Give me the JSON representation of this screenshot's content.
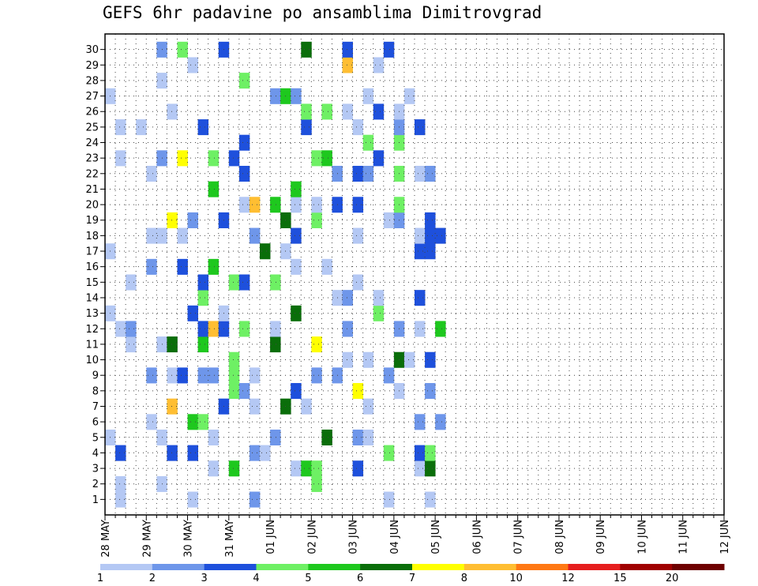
{
  "chart_data": {
    "type": "heatmap",
    "title": "GEFS 6hr padavine po ansamblima Dimitrovgrad",
    "members": [
      "1",
      "2",
      "3",
      "4",
      "5",
      "6",
      "7",
      "8",
      "9",
      "10",
      "11",
      "12",
      "13",
      "14",
      "15",
      "16",
      "17",
      "18",
      "19",
      "20",
      "21",
      "22",
      "23",
      "24",
      "25",
      "26",
      "27",
      "28",
      "29",
      "30"
    ],
    "time_steps_per_day": 4,
    "x_tick_labels": [
      "28 MAY",
      "29 MAY",
      "30 MAY",
      "31 MAY",
      "01 JUN",
      "02 JUN",
      "03 JUN",
      "04 JUN",
      "05 JUN",
      "06 JUN",
      "07 JUN",
      "08 JUN",
      "09 JUN",
      "10 JUN",
      "11 JUN",
      "12 JUN"
    ],
    "color_scale": {
      "thresholds": [
        1,
        2,
        3,
        4,
        5,
        6,
        7,
        8,
        10,
        12,
        15,
        20
      ],
      "labels": [
        "1",
        "2",
        "3",
        "4",
        "5",
        "6",
        "7",
        "8",
        "10",
        "12",
        "15",
        "20"
      ],
      "colors": [
        "#b4c8f4",
        "#6e96ea",
        "#1e50dc",
        "#6ef064",
        "#1ec81e",
        "#0a6e0a",
        "#ffff00",
        "#ffbe32",
        "#ff7814",
        "#e61e1e",
        "#a00000",
        "#6e0000"
      ]
    },
    "bins": [
      "----1-------1---1---------1---11-3-------1----------1-1---------------12--1---------------------------------------1--------",
      "--1--2------2-1---1---------1--1-----1------1----2----1-2---3--8-1-6-------7------1------------3------3-1----7------41--3-5-",
      "-----3-----2---------1------4--2-53-43---------3-------1-1---2--8---5----5-4-------------3----31-----3----------3--5----444-",
      "---4-------3--------------2---4--3----1-3-3---4--2--2--1-1--------2-8-------------1------------6-----------------2-----61--4",
      "----5------2---------6---------1-6-------5-----1----3----6--1-3-15-----2-----5---1-----------------34---6-44-----2-7-------4",
      "1--4-----------6----------1------5--4------------2----1-----3-2-----------------1-2-2-----------1--83--3-2--7------1--1-3-3",
      "--1---------1-1--1-----------2-4--1---------------41--------3--3--1-1--4----2---------1----------3-------1-6-2------24-4-42",
      "1-------------1----------------1-----13-2-----1-3--31---1--3-----1-64---2-3------333--2-------------2-----5-----3----------"
    ]
  }
}
